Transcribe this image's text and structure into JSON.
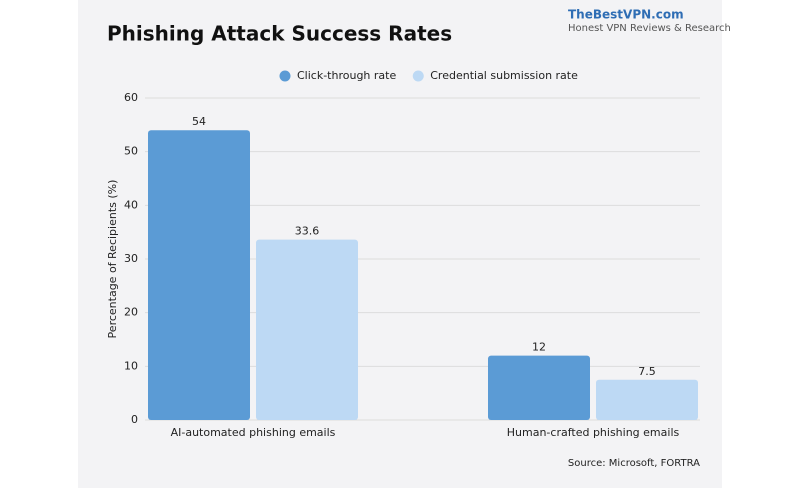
{
  "chart_data": {
    "type": "bar",
    "title": "Phishing Attack Success Rates",
    "brand": "TheBestVPN.com",
    "brand_tagline": "Honest VPN Reviews & Research",
    "y_label": "Percentage of Recipients (%)",
    "source": "Source: Microsoft, FORTRA",
    "categories": [
      "AI-automated phishing emails",
      "Human-crafted phishing emails"
    ],
    "series": [
      {
        "name": "Click-through rate",
        "color": "#5b9bd5",
        "values": [
          54,
          12
        ]
      },
      {
        "name": "Credential submission rate",
        "color": "#bdd9f4",
        "values": [
          33.6,
          7.5
        ]
      }
    ],
    "ylim": [
      0,
      60
    ],
    "yticks": [
      0,
      10,
      20,
      30,
      40,
      50,
      60
    ],
    "grid": true,
    "legend": "top"
  }
}
